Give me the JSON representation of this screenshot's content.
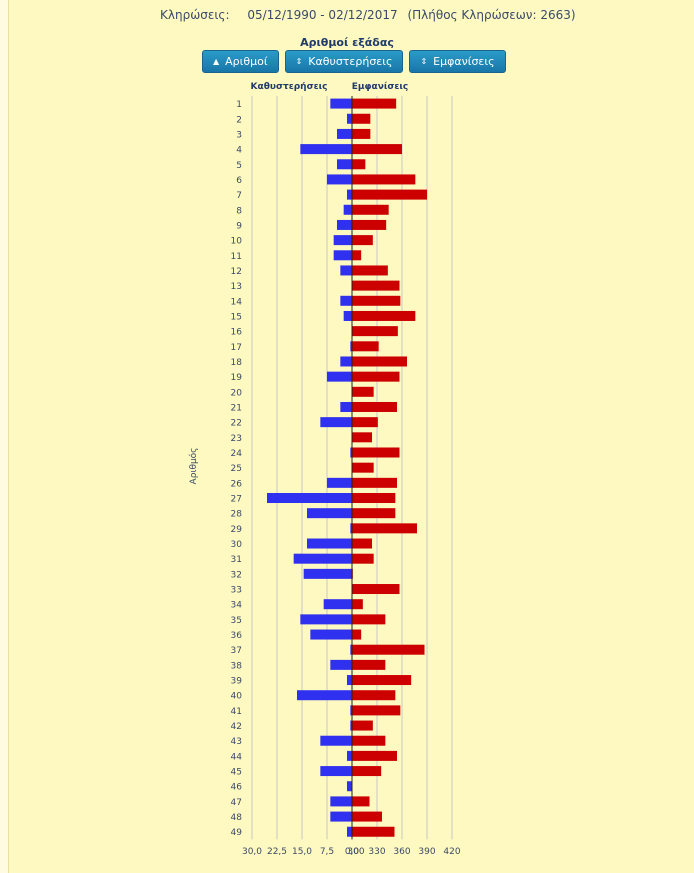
{
  "header": {
    "draws_label": "Κληρώσεις:",
    "date_range": "05/12/1990 - 02/12/2017",
    "count_text": "(Πλήθος Κληρώσεων: 2663)"
  },
  "buttons": [
    {
      "icon": "sort-up-icon",
      "glyph": "▲",
      "label": "Αριθμοί"
    },
    {
      "icon": "sort-icon",
      "glyph": "⇕",
      "label": "Καθυστερήσεις"
    },
    {
      "icon": "sort-icon",
      "glyph": "⇕",
      "label": "Εμφανίσεις"
    }
  ],
  "colors": {
    "delays": "#3030f0",
    "appearances": "#cc0000"
  },
  "chart_data": {
    "type": "bar",
    "orientation": "horizontal-diverging",
    "title": "Αριθμοί εξάδας",
    "ylabel": "Αριθμός",
    "categories": [
      "1",
      "2",
      "3",
      "4",
      "5",
      "6",
      "7",
      "8",
      "9",
      "10",
      "11",
      "12",
      "13",
      "14",
      "15",
      "16",
      "17",
      "18",
      "19",
      "20",
      "21",
      "22",
      "23",
      "24",
      "25",
      "26",
      "27",
      "28",
      "29",
      "30",
      "31",
      "32",
      "33",
      "34",
      "35",
      "36",
      "37",
      "38",
      "39",
      "40",
      "41",
      "42",
      "43",
      "44",
      "45",
      "46",
      "47",
      "48",
      "49"
    ],
    "left_axis": {
      "label": "Καθυστερήσεις",
      "ticks": [
        "30,0",
        "22,5",
        "15,0",
        "7,5",
        "0,0"
      ],
      "range": [
        0,
        30
      ],
      "series": {
        "name": "Καθυστερήσεις",
        "values": [
          6.5,
          1.5,
          4.5,
          15.5,
          4.5,
          7.5,
          1.5,
          2.5,
          4.5,
          5.5,
          5.5,
          3.5,
          0,
          3.5,
          2.5,
          0,
          0.5,
          3.5,
          7.5,
          0,
          3.5,
          9.5,
          0,
          0.5,
          0,
          7.5,
          25.5,
          13.5,
          0.5,
          13.5,
          17.5,
          14.5,
          0,
          8.5,
          15.5,
          12.5,
          0.5,
          6.5,
          1.5,
          16.5,
          0.5,
          0.5,
          9.5,
          1.5,
          9.5,
          1.5,
          6.5,
          6.5,
          1.5
        ]
      }
    },
    "right_axis": {
      "label": "Εμφανίσεις",
      "ticks": [
        "300",
        "330",
        "360",
        "390",
        "420"
      ],
      "range": [
        300,
        420
      ],
      "series": {
        "name": "Εμφανίσεις",
        "values": [
          353,
          322,
          322,
          360,
          316,
          376,
          390,
          344,
          341,
          325,
          311,
          343,
          357,
          358,
          376,
          355,
          332,
          366,
          357,
          326,
          354,
          331,
          324,
          357,
          326,
          354,
          352,
          352,
          378,
          324,
          326,
          301,
          357,
          313,
          340,
          311,
          387,
          340,
          371,
          352,
          358,
          325,
          340,
          354,
          335,
          300,
          321,
          336,
          351
        ]
      }
    },
    "grid": true
  }
}
